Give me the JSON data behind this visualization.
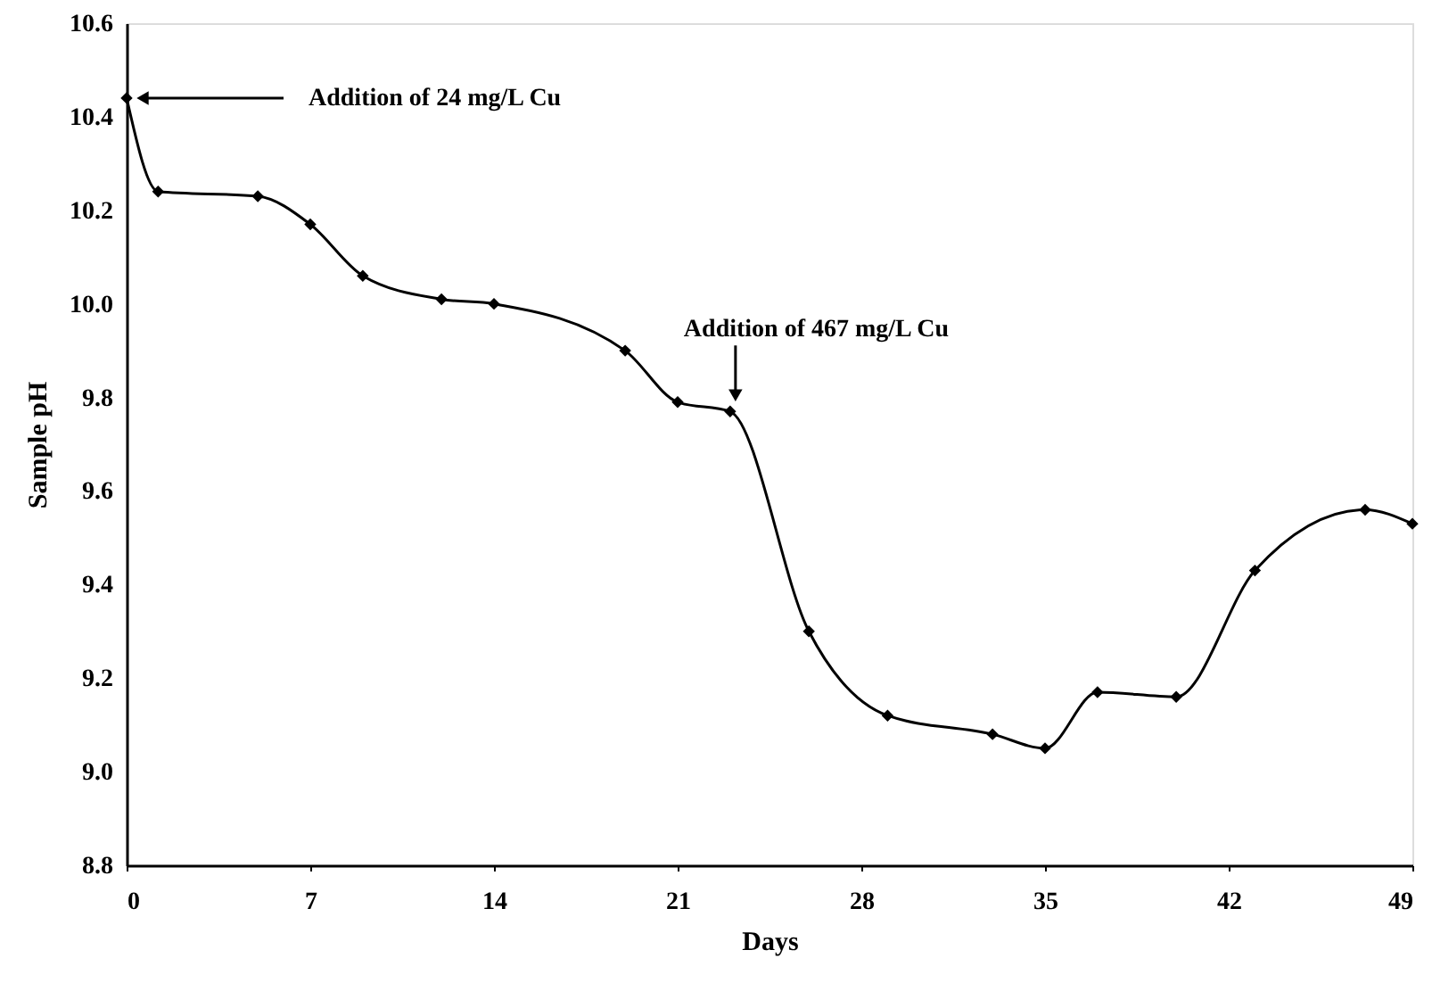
{
  "chart_data": {
    "type": "line",
    "xlabel": "Days",
    "ylabel": "Sample pH",
    "x": [
      0,
      1.2,
      5,
      7,
      9,
      12,
      14,
      19,
      21,
      23,
      26,
      29,
      33,
      35,
      37,
      40,
      43,
      47.2,
      49
    ],
    "series": [
      {
        "color": "#000000",
        "values": [
          10.44,
          10.24,
          10.23,
          10.17,
          10.06,
          10.01,
          10.0,
          9.9,
          9.79,
          9.77,
          9.3,
          9.12,
          9.08,
          9.05,
          9.17,
          9.16,
          9.43,
          9.56,
          9.53
        ]
      }
    ],
    "xlim": [
      0,
      49
    ],
    "xticks": [
      0,
      7,
      14,
      21,
      28,
      35,
      42,
      49
    ],
    "ylim": [
      8.8,
      10.6
    ],
    "yticks": [
      8.8,
      {
        "value": 9,
        "label": "9.0"
      },
      9.2,
      9.4,
      9.6,
      9.8,
      {
        "value": 10,
        "label": "10.0"
      },
      10.2,
      10.4,
      10.6
    ],
    "annotations": [
      {
        "text": "Addition of 24 mg/L Cu",
        "x": 0,
        "y": 10.44
      },
      {
        "text": "Addition of 467 mg/L Cu",
        "x": 23,
        "y": 9.77
      }
    ],
    "marker": "diamond",
    "line_style": "solid",
    "grid": false
  }
}
